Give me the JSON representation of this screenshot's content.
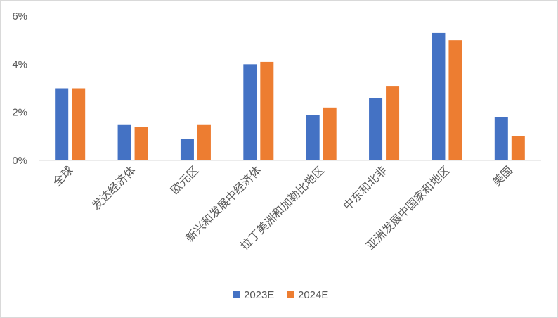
{
  "chart_data": {
    "type": "bar",
    "categories": [
      "全球",
      "发达经济体",
      "欧元区",
      "新兴和发展中经济体",
      "拉丁美洲和加勒比地区",
      "中东和北非",
      "亚洲发展中国家和地区",
      "美国"
    ],
    "series": [
      {
        "name": "2023E",
        "color": "#4472C4",
        "values": [
          3.0,
          1.5,
          0.9,
          4.0,
          1.9,
          2.6,
          5.3,
          1.8
        ]
      },
      {
        "name": "2024E",
        "color": "#ED7D31",
        "values": [
          3.0,
          1.4,
          1.5,
          4.1,
          2.2,
          3.1,
          5.0,
          1.0
        ]
      }
    ],
    "y_ticks": [
      0,
      2,
      4,
      6
    ],
    "y_tick_labels": [
      "0%",
      "2%",
      "4%",
      "6%"
    ],
    "ylim": [
      0,
      6
    ],
    "title": "",
    "xlabel": "",
    "ylabel": "",
    "grid": false,
    "legend_position": "bottom"
  }
}
